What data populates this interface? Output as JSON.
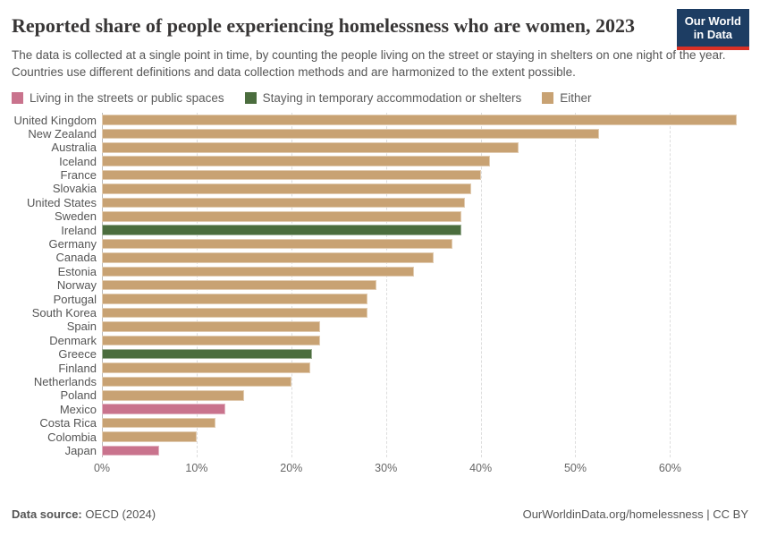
{
  "header": {
    "title": "Reported share of people experiencing homelessness who are women, 2023",
    "subtitle": "The data is collected at a single point in time, by counting the people living on the street or staying in shelters on one night of the year. Countries use different definitions and data collection methods and are harmonized to the extent possible.",
    "logo": {
      "line1": "Our World",
      "line2": "in Data",
      "bg_color": "#1d3d63",
      "accent_color": "#d93025"
    }
  },
  "legend": [
    {
      "key": "streets",
      "label": "Living in the streets or public spaces",
      "color": "#c9738d"
    },
    {
      "key": "shelters",
      "label": "Staying in temporary accommodation or shelters",
      "color": "#4b6d3e"
    },
    {
      "key": "either",
      "label": "Either",
      "color": "#c8a273"
    }
  ],
  "chart_data": {
    "type": "bar",
    "orientation": "horizontal",
    "title": "Reported share of people experiencing homelessness who are women, 2023",
    "xlabel": "",
    "ylabel": "",
    "xlim": [
      0,
      67.8
    ],
    "grid": true,
    "ticks": [
      {
        "value": 0,
        "label": "0%"
      },
      {
        "value": 10,
        "label": "10%"
      },
      {
        "value": 20,
        "label": "20%"
      },
      {
        "value": 30,
        "label": "30%"
      },
      {
        "value": 40,
        "label": "40%"
      },
      {
        "value": 50,
        "label": "50%"
      },
      {
        "value": 60,
        "label": "60%"
      }
    ],
    "bars": [
      {
        "label": "United Kingdom",
        "value": 67,
        "category": "either"
      },
      {
        "label": "New Zealand",
        "value": 52.5,
        "category": "either"
      },
      {
        "label": "Australia",
        "value": 44,
        "category": "either"
      },
      {
        "label": "Iceland",
        "value": 41,
        "category": "either"
      },
      {
        "label": "France",
        "value": 40,
        "category": "either"
      },
      {
        "label": "Slovakia",
        "value": 39,
        "category": "either"
      },
      {
        "label": "United States",
        "value": 38.3,
        "category": "either"
      },
      {
        "label": "Sweden",
        "value": 38,
        "category": "either"
      },
      {
        "label": "Ireland",
        "value": 38,
        "category": "shelters"
      },
      {
        "label": "Germany",
        "value": 37,
        "category": "either"
      },
      {
        "label": "Canada",
        "value": 35,
        "category": "either"
      },
      {
        "label": "Estonia",
        "value": 33,
        "category": "either"
      },
      {
        "label": "Norway",
        "value": 29,
        "category": "either"
      },
      {
        "label": "Portugal",
        "value": 28,
        "category": "either"
      },
      {
        "label": "South Korea",
        "value": 28,
        "category": "either"
      },
      {
        "label": "Spain",
        "value": 23,
        "category": "either"
      },
      {
        "label": "Denmark",
        "value": 23,
        "category": "either"
      },
      {
        "label": "Greece",
        "value": 22.2,
        "category": "shelters"
      },
      {
        "label": "Finland",
        "value": 22,
        "category": "either"
      },
      {
        "label": "Netherlands",
        "value": 20,
        "category": "either"
      },
      {
        "label": "Poland",
        "value": 15,
        "category": "either"
      },
      {
        "label": "Mexico",
        "value": 13,
        "category": "streets"
      },
      {
        "label": "Costa Rica",
        "value": 12,
        "category": "either"
      },
      {
        "label": "Colombia",
        "value": 10,
        "category": "either"
      },
      {
        "label": "Japan",
        "value": 6,
        "category": "streets"
      }
    ]
  },
  "footer": {
    "source_label": "Data source:",
    "source_value": " OECD (2024)",
    "credit": "OurWorldinData.org/homelessness | CC BY"
  }
}
